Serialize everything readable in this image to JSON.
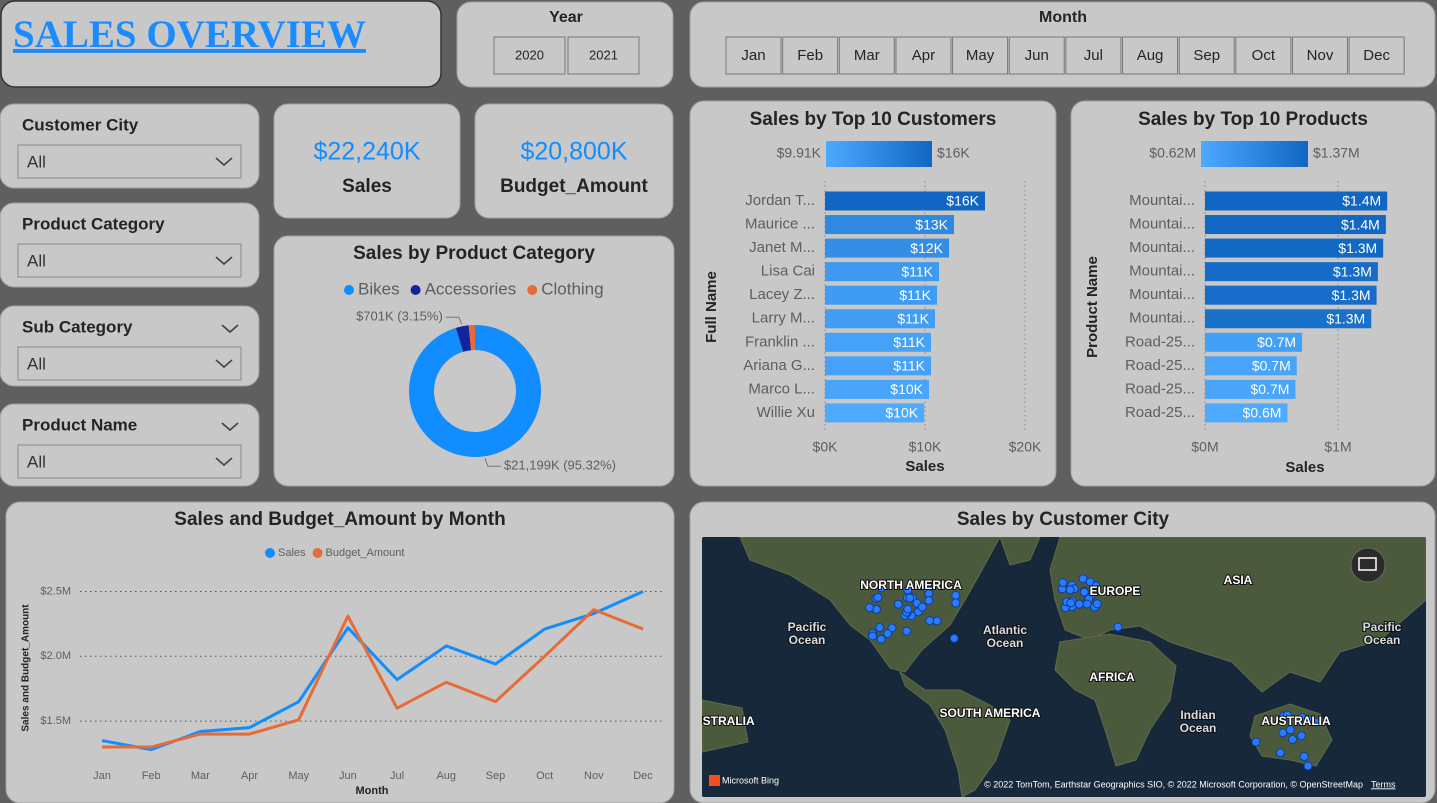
{
  "header": {
    "title": "SALES OVERVIEW"
  },
  "year_slicer": {
    "label": "Year",
    "options": [
      "2020",
      "2021"
    ]
  },
  "month_slicer": {
    "label": "Month",
    "options": [
      "Jan",
      "Feb",
      "Mar",
      "Apr",
      "May",
      "Jun",
      "Jul",
      "Aug",
      "Sep",
      "Oct",
      "Nov",
      "Dec"
    ]
  },
  "filters": [
    {
      "label": "Customer City",
      "value": "All"
    },
    {
      "label": "Product Category",
      "value": "All"
    },
    {
      "label": "Sub Category",
      "value": "All"
    },
    {
      "label": "Product Name",
      "value": "All"
    }
  ],
  "cards": [
    {
      "value": "$22,240K",
      "label": "Sales"
    },
    {
      "value": "$20,800K",
      "label": "Budget_Amount"
    }
  ],
  "chart_data": [
    {
      "type": "pie",
      "donut": true,
      "title": "Sales by Product Category",
      "categories": [
        "Bikes",
        "Accessories",
        "Clothing"
      ],
      "values": [
        95.32,
        3.15,
        1.53
      ],
      "value_labels": [
        "$21,199K (95.32%)",
        "$701K (3.15%)",
        null
      ],
      "colors": [
        "#118DFF",
        "#12239E",
        "#E66C37"
      ]
    },
    {
      "type": "bar",
      "orientation": "horizontal",
      "title": "Sales by Top 10 Customers",
      "categories": [
        "Jordan T...",
        "Maurice ...",
        "Janet M...",
        "Lisa Cai",
        "Lacey Z...",
        "Larry M...",
        "Franklin ...",
        "Ariana G...",
        "Marco L...",
        "Willie Xu"
      ],
      "values": [
        16,
        12.9,
        12.4,
        11.4,
        11.2,
        11.0,
        10.6,
        10.6,
        10.4,
        9.91
      ],
      "value_labels": [
        "$16K",
        "$13K",
        "$12K",
        "$11K",
        "$11K",
        "$11K",
        "$11K",
        "$11K",
        "$10K",
        "$10K"
      ],
      "x_label": "Sales",
      "y_label": "Full Name",
      "xlim": [
        0,
        20.5
      ],
      "xticks": [
        {
          "value": 0,
          "label": "$0K"
        },
        {
          "value": 10,
          "label": "$10K"
        },
        {
          "value": 20,
          "label": "$20K"
        }
      ],
      "grid": true,
      "color_scale": {
        "min": {
          "value": 9.91,
          "label": "$9.91K",
          "color": "#4DAAFF"
        },
        "max": {
          "value": 16,
          "label": "$16K",
          "color": "#1066C2"
        }
      }
    },
    {
      "type": "bar",
      "orientation": "horizontal",
      "title": "Sales by Top 10 Products",
      "categories": [
        "Mountai...",
        "Mountai...",
        "Mountai...",
        "Mountai...",
        "Mountai...",
        "Mountai...",
        "Road-25...",
        "Road-25...",
        "Road-25...",
        "Road-25..."
      ],
      "values": [
        1.37,
        1.36,
        1.34,
        1.3,
        1.29,
        1.25,
        0.73,
        0.69,
        0.68,
        0.62
      ],
      "value_labels": [
        "$1.4M",
        "$1.4M",
        "$1.3M",
        "$1.3M",
        "$1.3M",
        "$1.3M",
        "$0.7M",
        "$0.7M",
        "$0.7M",
        "$0.6M"
      ],
      "x_label": "Sales",
      "y_label": "Product Name",
      "xlim": [
        0,
        1.47
      ],
      "xticks": [
        {
          "value": 0,
          "label": "$0M"
        },
        {
          "value": 1,
          "label": "$1M"
        }
      ],
      "grid": true,
      "color_scale": {
        "min": {
          "value": 0.62,
          "label": "$0.62M",
          "color": "#4DAAFF"
        },
        "max": {
          "value": 1.37,
          "label": "$1.37M",
          "color": "#1066C2"
        }
      }
    },
    {
      "type": "line",
      "title": "Sales and Budget_Amount by Month",
      "categories": [
        "Jan",
        "Feb",
        "Mar",
        "Apr",
        "May",
        "Jun",
        "Jul",
        "Aug",
        "Sep",
        "Oct",
        "Nov",
        "Dec"
      ],
      "series": [
        {
          "name": "Sales",
          "color": "#118DFF",
          "values": [
            1.35,
            1.28,
            1.42,
            1.45,
            1.65,
            2.22,
            1.82,
            2.08,
            1.94,
            2.21,
            2.33,
            2.5
          ]
        },
        {
          "name": "Budget_Amount",
          "color": "#E66C37",
          "values": [
            1.3,
            1.3,
            1.4,
            1.4,
            1.51,
            2.31,
            1.6,
            1.8,
            1.65,
            2.0,
            2.36,
            2.21
          ]
        }
      ],
      "x_label": "Month",
      "y_label": "Sales and Budget_Amount",
      "ylim": [
        1.2,
        2.55
      ],
      "yticks": [
        {
          "value": 1.5,
          "label": "$1.5M"
        },
        {
          "value": 2.0,
          "label": "$2.0M"
        },
        {
          "value": 2.5,
          "label": "$2.5M"
        }
      ],
      "grid": true
    }
  ],
  "map": {
    "title": "Sales by Customer City",
    "labels": [
      [
        "NORTH AMERICA"
      ],
      [
        "EUROPE"
      ],
      [
        "ASIA"
      ],
      [
        "Pacific",
        "Ocean"
      ],
      [
        "Atlantic",
        "Ocean"
      ],
      [
        "AFRICA"
      ],
      [
        "SOUTH AMERICA"
      ],
      [
        "Indian",
        "Ocean"
      ],
      [
        "AUSTRALIA"
      ],
      [
        "AUSTRALIA"
      ],
      [
        "Pacific",
        "Ocean"
      ]
    ],
    "provider": "Microsoft Bing",
    "attribution": "© 2022 TomTom, Earthstar Geographics SIO, © 2022 Microsoft Corporation, © OpenStreetMap",
    "terms": "Terms"
  }
}
